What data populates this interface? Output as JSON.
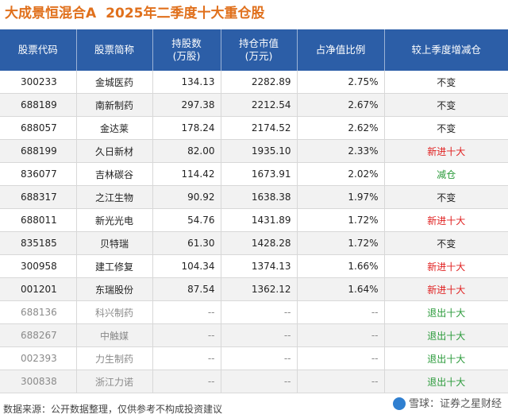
{
  "title": {
    "fund": "大成景恒混合A",
    "period": "2025年二季度十大重仓股"
  },
  "colors": {
    "title": "#e0701c",
    "header_bg": "#2c5ea7",
    "new": "#e02020",
    "reduce": "#2a9a3a",
    "exit": "#2a9a3a",
    "unchanged": "#222222"
  },
  "table": {
    "headers": {
      "code": "股票代码",
      "name": "股票简称",
      "shares_line1": "持股数",
      "shares_line2": "(万股)",
      "value_line1": "持仓市值",
      "value_line2": "(万元)",
      "ratio": "占净值比例",
      "change": "较上季度增减仓"
    },
    "rows": [
      {
        "code": "300233",
        "name": "金城医药",
        "shares": "134.13",
        "value": "2282.89",
        "ratio": "2.75%",
        "change": "不变",
        "change_type": "unchanged"
      },
      {
        "code": "688189",
        "name": "南新制药",
        "shares": "297.38",
        "value": "2212.54",
        "ratio": "2.67%",
        "change": "不变",
        "change_type": "unchanged"
      },
      {
        "code": "688057",
        "name": "金达莱",
        "shares": "178.24",
        "value": "2174.52",
        "ratio": "2.62%",
        "change": "不变",
        "change_type": "unchanged"
      },
      {
        "code": "688199",
        "name": "久日新材",
        "shares": "82.00",
        "value": "1935.10",
        "ratio": "2.33%",
        "change": "新进十大",
        "change_type": "new"
      },
      {
        "code": "836077",
        "name": "吉林碳谷",
        "shares": "114.42",
        "value": "1673.91",
        "ratio": "2.02%",
        "change": "减仓",
        "change_type": "reduce"
      },
      {
        "code": "688317",
        "name": "之江生物",
        "shares": "90.92",
        "value": "1638.38",
        "ratio": "1.97%",
        "change": "不变",
        "change_type": "unchanged"
      },
      {
        "code": "688011",
        "name": "新光光电",
        "shares": "54.76",
        "value": "1431.89",
        "ratio": "1.72%",
        "change": "新进十大",
        "change_type": "new"
      },
      {
        "code": "835185",
        "name": "贝特瑞",
        "shares": "61.30",
        "value": "1428.28",
        "ratio": "1.72%",
        "change": "不变",
        "change_type": "unchanged"
      },
      {
        "code": "300958",
        "name": "建工修复",
        "shares": "104.34",
        "value": "1374.13",
        "ratio": "1.66%",
        "change": "新进十大",
        "change_type": "new"
      },
      {
        "code": "001201",
        "name": "东瑞股份",
        "shares": "87.54",
        "value": "1362.12",
        "ratio": "1.64%",
        "change": "新进十大",
        "change_type": "new"
      },
      {
        "code": "688136",
        "name": "科兴制药",
        "shares": "--",
        "value": "--",
        "ratio": "--",
        "change": "退出十大",
        "change_type": "exit"
      },
      {
        "code": "688267",
        "name": "中触媒",
        "shares": "--",
        "value": "--",
        "ratio": "--",
        "change": "退出十大",
        "change_type": "exit"
      },
      {
        "code": "002393",
        "name": "力生制药",
        "shares": "--",
        "value": "--",
        "ratio": "--",
        "change": "退出十大",
        "change_type": "exit"
      },
      {
        "code": "300838",
        "name": "浙江力诺",
        "shares": "--",
        "value": "--",
        "ratio": "--",
        "change": "退出十大",
        "change_type": "exit"
      }
    ]
  },
  "footer": {
    "source": "数据来源：公开数据整理，仅供参考不构成投资建议"
  },
  "brand": {
    "text": "雪球：证券之星财经",
    "logo_icon": "snowball-logo-icon"
  }
}
